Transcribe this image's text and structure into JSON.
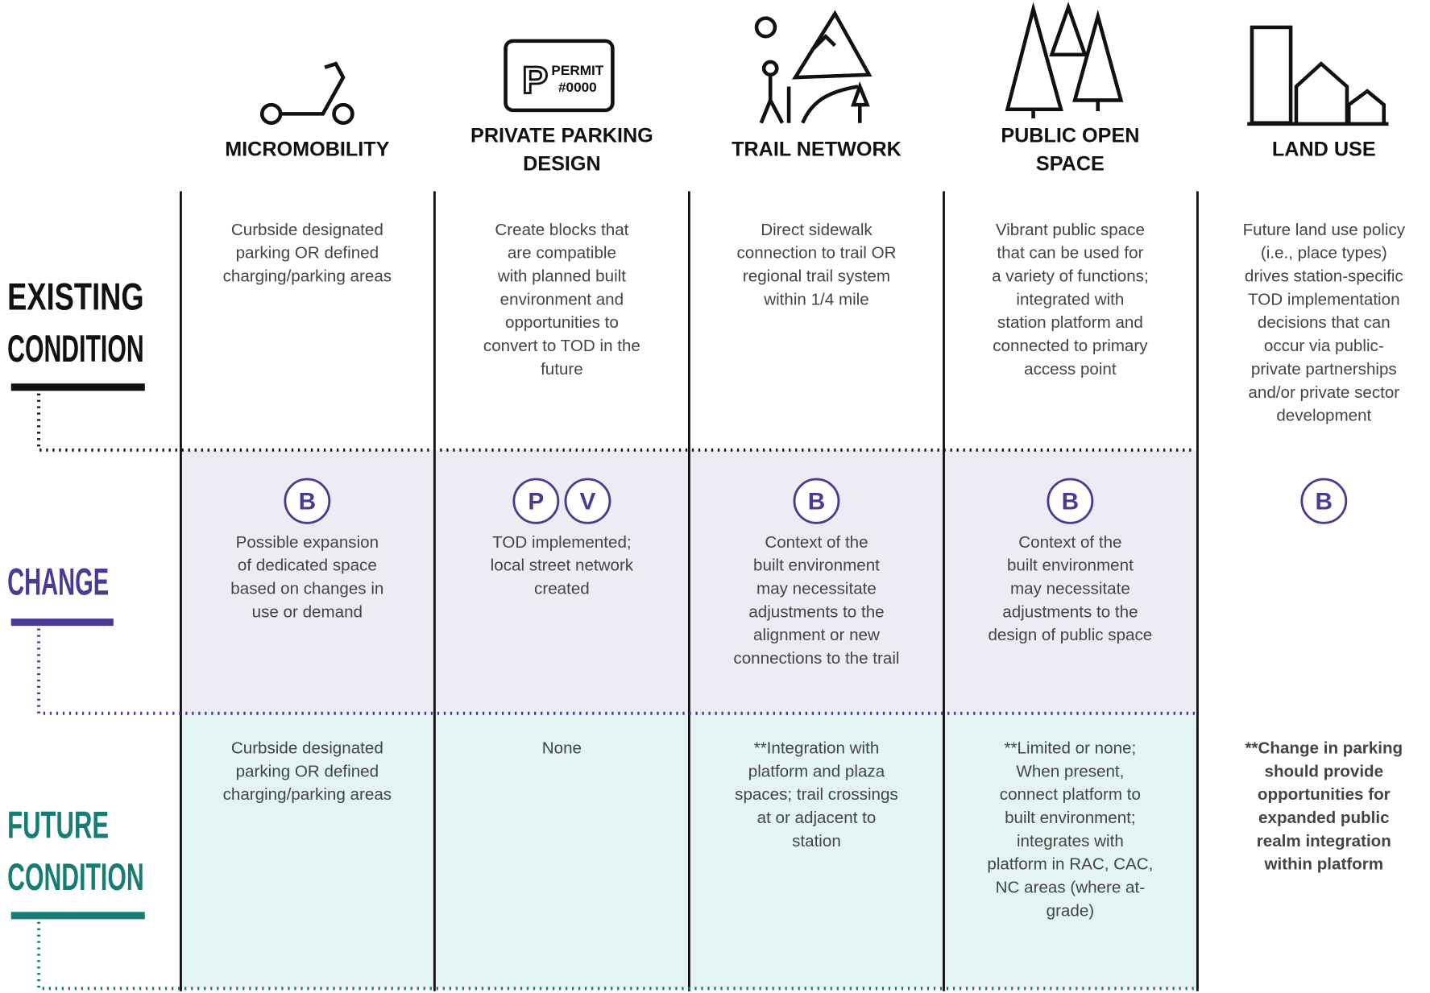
{
  "row_labels": [
    {
      "lines": [
        "EXISTING",
        "CONDITION"
      ],
      "color": "#111111"
    },
    {
      "lines": [
        "CHANGE"
      ],
      "color": "#4b3a92"
    },
    {
      "lines": [
        "FUTURE",
        "CONDITION"
      ],
      "color": "#177c72"
    }
  ],
  "columns": [
    {
      "title": [
        "MICROMOBILITY"
      ],
      "existing": [
        "Curbside designated",
        "parking OR defined",
        "charging/parking areas"
      ],
      "badges": [
        "B"
      ],
      "change": [
        "Possible expansion",
        "of dedicated space",
        "based on changes in",
        "use or demand"
      ],
      "future": [
        "Curbside designated",
        "parking OR defined",
        "charging/parking areas"
      ]
    },
    {
      "title": [
        "PRIVATE PARKING",
        "DESIGN"
      ],
      "icon_text": [
        "P",
        "PERMIT",
        "#0000"
      ],
      "existing": [
        "Create blocks that",
        "are compatible",
        "with planned built",
        "environment and",
        "opportunities to",
        "convert to TOD in the",
        "future"
      ],
      "badges": [
        "P",
        "V"
      ],
      "change": [
        "TOD implemented;",
        "local street network",
        "created"
      ],
      "future": [
        "None"
      ]
    },
    {
      "title": [
        "TRAIL NETWORK"
      ],
      "existing": [
        "Direct sidewalk",
        "connection to trail OR",
        "regional trail system",
        "within 1/4 mile"
      ],
      "badges": [
        "B"
      ],
      "change": [
        "Context of the",
        "built environment",
        "may necessitate",
        "adjustments to the",
        "alignment or new",
        "connections to the trail"
      ],
      "future": [
        "**Integration with",
        "platform and plaza",
        "spaces; trail crossings",
        "at or adjacent to",
        "station"
      ]
    },
    {
      "title": [
        "PUBLIC OPEN",
        "SPACE"
      ],
      "existing": [
        "Vibrant public space",
        "that can be used for",
        "a variety of functions;",
        "integrated with",
        "station platform and",
        "connected to primary",
        "access point"
      ],
      "badges": [
        "B"
      ],
      "change": [
        "Context of the",
        "built environment",
        "may necessitate",
        "adjustments to the",
        "design of public space"
      ],
      "future": [
        "**Limited or none;",
        "When present,",
        "connect platform to",
        "built environment;",
        "integrates with",
        "platform in RAC, CAC,",
        "NC areas (where at-",
        "grade)"
      ]
    },
    {
      "title": [
        "LAND USE"
      ],
      "existing": [
        "Future land use policy",
        "(i.e., place types)",
        "drives station-specific",
        "TOD implementation",
        "decisions that can",
        "occur via public-",
        "private partnerships",
        "and/or private sector",
        "development"
      ],
      "badges": [
        "B"
      ],
      "change": [],
      "future": [
        "**Change in parking",
        "should provide",
        "opportunities for",
        "expanded public",
        "realm integration",
        "within platform"
      ],
      "future_bold": true
    }
  ]
}
